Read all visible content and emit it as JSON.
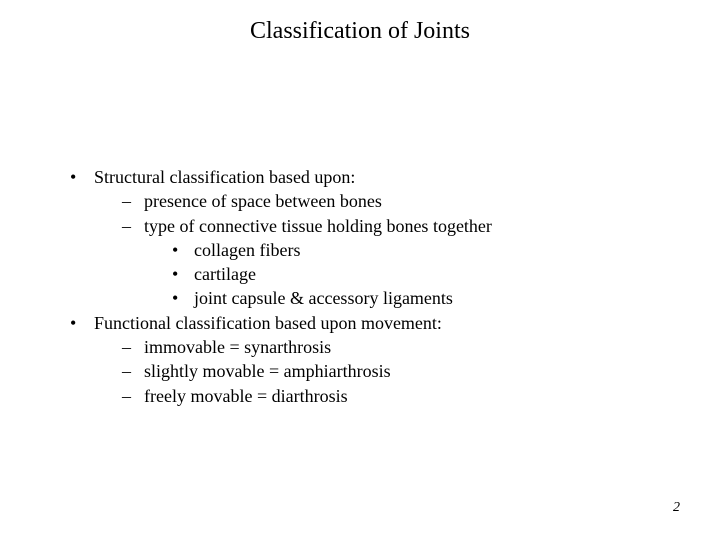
{
  "title": "Classification of Joints",
  "bullets": [
    {
      "text": "Structural classification based upon:",
      "children": [
        {
          "text": "presence of space between bones"
        },
        {
          "text": "type of connective tissue holding bones together",
          "children": [
            {
              "text": "collagen fibers"
            },
            {
              "text": "cartilage"
            },
            {
              "text": "joint capsule & accessory ligaments"
            }
          ]
        }
      ]
    },
    {
      "text": "Functional classification based upon movement:",
      "children": [
        {
          "text": "immovable  =  synarthrosis"
        },
        {
          "text": "slightly movable  =  amphiarthrosis"
        },
        {
          "text": "freely movable  =  diarthrosis"
        }
      ]
    }
  ],
  "page_number": "2",
  "styling": {
    "background_color": "#ffffff",
    "text_color": "#000000",
    "title_fontsize": 24,
    "body_fontsize": 18,
    "font_family": "Times New Roman"
  }
}
